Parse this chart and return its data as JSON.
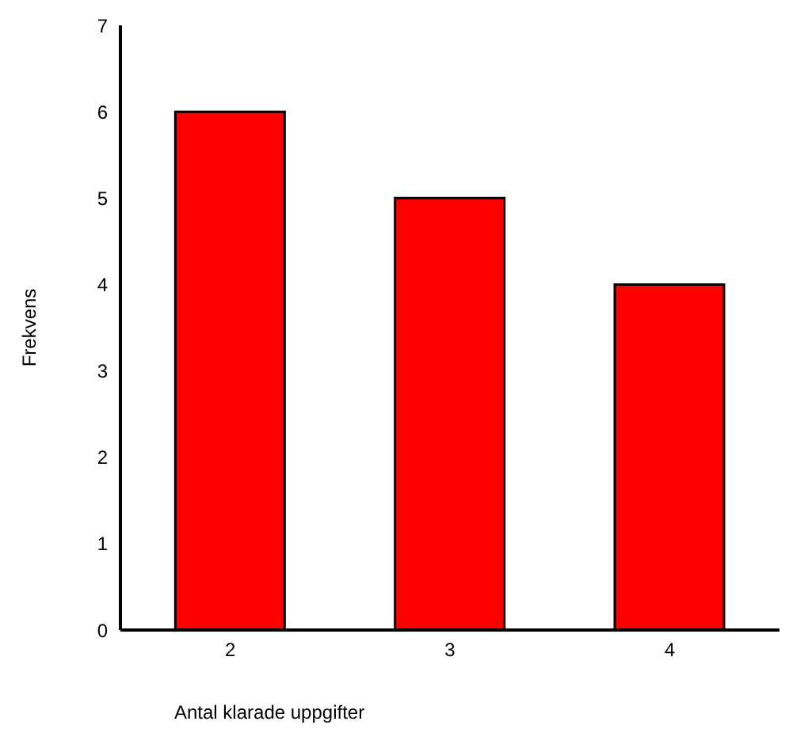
{
  "chart_data": {
    "type": "bar",
    "xlabel": "Antal klarade uppgifter",
    "ylabel": "Frekvens",
    "categories": [
      "2",
      "3",
      "4"
    ],
    "values": [
      6,
      5,
      4
    ],
    "color": "#ff0000",
    "ylim": [
      0,
      7
    ],
    "yticks": [
      0,
      1,
      2,
      3,
      4,
      5,
      6,
      7
    ],
    "grid": false,
    "legend": false
  }
}
